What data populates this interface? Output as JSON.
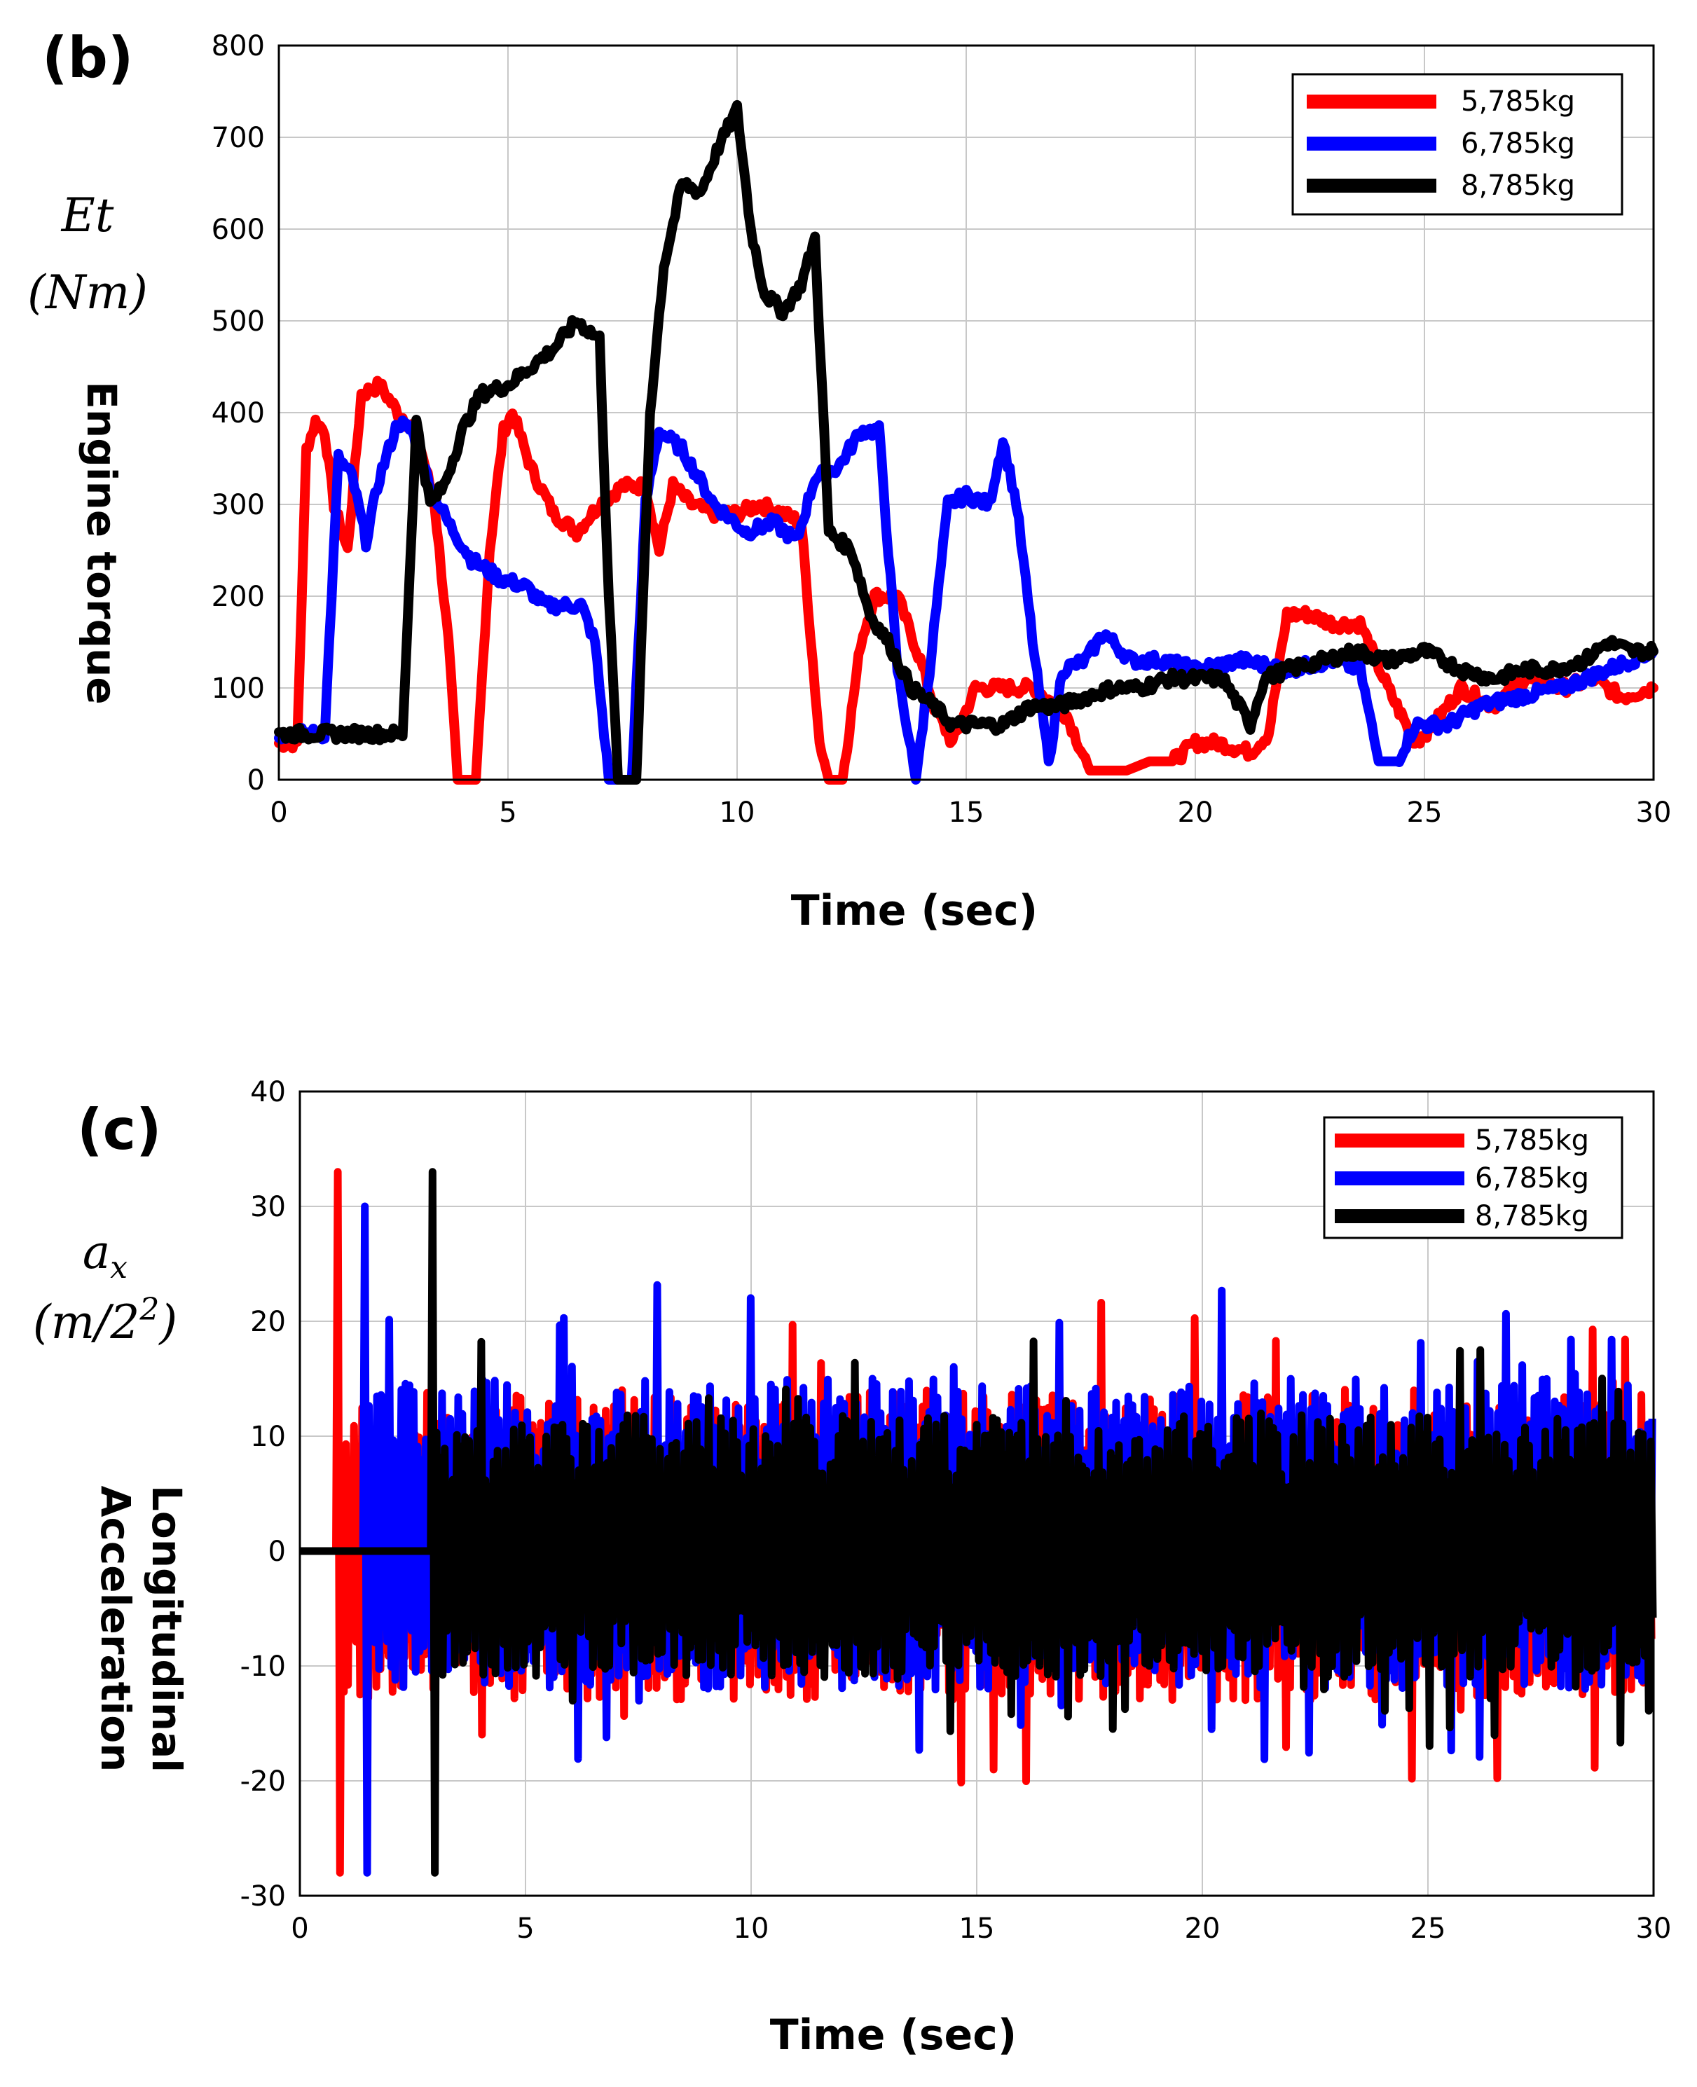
{
  "chart_data": [
    {
      "type": "line",
      "panel_label": "(b)",
      "ylabel_symbol": "Et",
      "ylabel_unit": "(Nm)",
      "ylabel": "Engine torque",
      "xlabel": "Time (sec)",
      "xlim": [
        0,
        30
      ],
      "ylim": [
        0,
        800
      ],
      "xticks": [
        0,
        5,
        10,
        15,
        20,
        25,
        30
      ],
      "yticks": [
        0,
        100,
        200,
        300,
        400,
        500,
        600,
        700,
        800
      ],
      "grid": true,
      "legend_position": "top-right",
      "series": [
        {
          "name": "5,785kg",
          "color": "#ff0000",
          "points": [
            [
              0,
              40
            ],
            [
              0.4,
              40
            ],
            [
              0.6,
              360
            ],
            [
              0.8,
              390
            ],
            [
              1.0,
              380
            ],
            [
              1.2,
              300
            ],
            [
              1.5,
              250
            ],
            [
              1.8,
              420
            ],
            [
              2.2,
              430
            ],
            [
              2.6,
              400
            ],
            [
              3.0,
              380
            ],
            [
              3.4,
              300
            ],
            [
              3.7,
              150
            ],
            [
              3.9,
              0
            ],
            [
              4.3,
              0
            ],
            [
              4.6,
              250
            ],
            [
              4.9,
              380
            ],
            [
              5.1,
              400
            ],
            [
              5.5,
              340
            ],
            [
              6.0,
              290
            ],
            [
              6.5,
              270
            ],
            [
              7.0,
              300
            ],
            [
              7.5,
              320
            ],
            [
              8.0,
              320
            ],
            [
              8.3,
              250
            ],
            [
              8.6,
              320
            ],
            [
              9.0,
              300
            ],
            [
              9.5,
              290
            ],
            [
              10.0,
              290
            ],
            [
              10.5,
              300
            ],
            [
              11.0,
              290
            ],
            [
              11.4,
              280
            ],
            [
              11.8,
              40
            ],
            [
              12.0,
              0
            ],
            [
              12.3,
              0
            ],
            [
              12.7,
              150
            ],
            [
              13.0,
              200
            ],
            [
              13.5,
              200
            ],
            [
              14.0,
              130
            ],
            [
              14.3,
              80
            ],
            [
              14.7,
              40
            ],
            [
              15.2,
              100
            ],
            [
              16.5,
              100
            ],
            [
              17.2,
              70
            ],
            [
              17.7,
              10
            ],
            [
              18.5,
              10
            ],
            [
              19.0,
              20
            ],
            [
              19.5,
              20
            ],
            [
              20.0,
              40
            ],
            [
              20.5,
              40
            ],
            [
              21.2,
              30
            ],
            [
              21.6,
              50
            ],
            [
              22.0,
              180
            ],
            [
              22.5,
              180
            ],
            [
              23.0,
              170
            ],
            [
              23.6,
              170
            ],
            [
              24.2,
              100
            ],
            [
              24.8,
              40
            ],
            [
              25.2,
              60
            ],
            [
              25.8,
              100
            ],
            [
              26.5,
              80
            ],
            [
              27.2,
              110
            ],
            [
              28.0,
              100
            ],
            [
              28.7,
              110
            ],
            [
              29.3,
              90
            ],
            [
              30.0,
              100
            ]
          ]
        },
        {
          "name": "6,785kg",
          "color": "#0000ff",
          "points": [
            [
              0,
              50
            ],
            [
              1.0,
              50
            ],
            [
              1.3,
              350
            ],
            [
              1.6,
              330
            ],
            [
              1.9,
              260
            ],
            [
              2.2,
              330
            ],
            [
              2.6,
              390
            ],
            [
              2.9,
              380
            ],
            [
              3.3,
              320
            ],
            [
              3.7,
              280
            ],
            [
              4.2,
              240
            ],
            [
              4.8,
              220
            ],
            [
              5.4,
              210
            ],
            [
              5.8,
              190
            ],
            [
              6.2,
              190
            ],
            [
              6.6,
              190
            ],
            [
              6.9,
              150
            ],
            [
              7.2,
              0
            ],
            [
              7.7,
              0
            ],
            [
              8.0,
              300
            ],
            [
              8.3,
              380
            ],
            [
              8.8,
              360
            ],
            [
              9.5,
              300
            ],
            [
              10.2,
              270
            ],
            [
              10.8,
              280
            ],
            [
              11.3,
              260
            ],
            [
              11.7,
              330
            ],
            [
              12.2,
              340
            ],
            [
              12.7,
              380
            ],
            [
              13.1,
              380
            ],
            [
              13.5,
              120
            ],
            [
              13.9,
              0
            ],
            [
              14.2,
              120
            ],
            [
              14.6,
              300
            ],
            [
              15.0,
              310
            ],
            [
              15.5,
              300
            ],
            [
              15.8,
              370
            ],
            [
              16.1,
              300
            ],
            [
              16.5,
              130
            ],
            [
              16.8,
              20
            ],
            [
              17.1,
              120
            ],
            [
              17.6,
              130
            ],
            [
              18.0,
              160
            ],
            [
              18.6,
              130
            ],
            [
              19.3,
              130
            ],
            [
              20.0,
              120
            ],
            [
              21.0,
              130
            ],
            [
              22.0,
              120
            ],
            [
              23.0,
              130
            ],
            [
              23.6,
              120
            ],
            [
              24.0,
              20
            ],
            [
              24.4,
              20
            ],
            [
              24.8,
              60
            ],
            [
              25.5,
              60
            ],
            [
              26.2,
              80
            ],
            [
              27.0,
              90
            ],
            [
              28.0,
              100
            ],
            [
              29.0,
              120
            ],
            [
              30.0,
              140
            ]
          ]
        },
        {
          "name": "8,785kg",
          "color": "#000000",
          "points": [
            [
              0,
              50
            ],
            [
              2.7,
              50
            ],
            [
              3.0,
              390
            ],
            [
              3.3,
              300
            ],
            [
              3.6,
              320
            ],
            [
              4.0,
              380
            ],
            [
              4.4,
              420
            ],
            [
              5.0,
              430
            ],
            [
              5.5,
              450
            ],
            [
              6.0,
              470
            ],
            [
              6.5,
              500
            ],
            [
              7.0,
              480
            ],
            [
              7.2,
              200
            ],
            [
              7.4,
              0
            ],
            [
              7.8,
              0
            ],
            [
              8.1,
              400
            ],
            [
              8.4,
              560
            ],
            [
              8.8,
              650
            ],
            [
              9.2,
              640
            ],
            [
              9.6,
              690
            ],
            [
              10.0,
              730
            ],
            [
              10.3,
              600
            ],
            [
              10.6,
              530
            ],
            [
              11.0,
              510
            ],
            [
              11.4,
              540
            ],
            [
              11.7,
              590
            ],
            [
              12.0,
              270
            ],
            [
              12.5,
              250
            ],
            [
              12.9,
              180
            ],
            [
              13.3,
              150
            ],
            [
              13.8,
              100
            ],
            [
              14.3,
              80
            ],
            [
              14.7,
              60
            ],
            [
              15.2,
              60
            ],
            [
              15.8,
              60
            ],
            [
              16.4,
              80
            ],
            [
              17.0,
              80
            ],
            [
              17.6,
              90
            ],
            [
              18.2,
              100
            ],
            [
              18.8,
              100
            ],
            [
              19.4,
              110
            ],
            [
              20.0,
              110
            ],
            [
              20.6,
              110
            ],
            [
              21.2,
              60
            ],
            [
              21.5,
              110
            ],
            [
              22.0,
              120
            ],
            [
              22.8,
              130
            ],
            [
              23.5,
              140
            ],
            [
              24.2,
              130
            ],
            [
              25.0,
              140
            ],
            [
              25.8,
              120
            ],
            [
              26.5,
              110
            ],
            [
              27.2,
              120
            ],
            [
              27.8,
              120
            ],
            [
              28.5,
              130
            ],
            [
              29.0,
              150
            ],
            [
              29.5,
              140
            ],
            [
              30.0,
              140
            ]
          ]
        }
      ]
    },
    {
      "type": "line",
      "panel_label": "(c)",
      "ylabel_symbol": "a",
      "ylabel_symbol_sub": "x",
      "ylabel_unit_pre": "(m/2",
      "ylabel_unit_sup": "2",
      "ylabel_unit_post": ")",
      "ylabel_line1": "Longitudinal",
      "ylabel_line2": "Acceleration",
      "xlabel": "Time (sec)",
      "xlim": [
        0,
        30
      ],
      "ylim": [
        -30,
        40
      ],
      "xticks": [
        0,
        5,
        10,
        15,
        20,
        25,
        30
      ],
      "yticks": [
        -30,
        -20,
        -10,
        0,
        10,
        20,
        30,
        40
      ],
      "grid": true,
      "legend_position": "top-right",
      "series": [
        {
          "name": "5,785kg",
          "color": "#ff0000",
          "signal": {
            "start": 0.8,
            "spike_max": 33,
            "spike_min": -28,
            "amp_pos": 14,
            "amp_neg": -13
          }
        },
        {
          "name": "6,785kg",
          "color": "#0000ff",
          "signal": {
            "start": 1.4,
            "spike_max": 30,
            "spike_min": -28,
            "amp_pos": 15,
            "amp_neg": -12
          }
        },
        {
          "name": "8,785kg",
          "color": "#000000",
          "signal": {
            "start": 2.9,
            "spike_max": 33,
            "spike_min": -28,
            "amp_pos": 12,
            "amp_neg": -11
          }
        }
      ]
    }
  ]
}
